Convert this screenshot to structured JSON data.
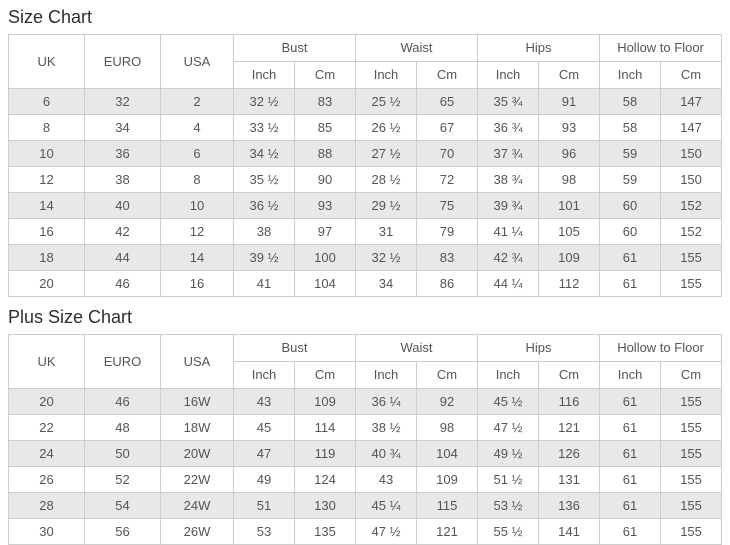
{
  "colors": {
    "stripe": "#e8e8e8",
    "border": "#cccccc",
    "text": "#555555",
    "title": "#2d2d2d",
    "background": "#ffffff"
  },
  "tables": [
    {
      "id": "size-chart",
      "title": "Size Chart",
      "plain_columns": [
        "UK",
        "EURO",
        "USA"
      ],
      "groups": [
        "Bust",
        "Waist",
        "Hips",
        "Hollow to Floor"
      ],
      "sub_headers": [
        "Inch",
        "Cm"
      ],
      "rows": [
        [
          "6",
          "32",
          "2",
          "32 ½",
          "83",
          "25 ½",
          "65",
          "35 ¾",
          "91",
          "58",
          "147"
        ],
        [
          "8",
          "34",
          "4",
          "33 ½",
          "85",
          "26 ½",
          "67",
          "36 ¾",
          "93",
          "58",
          "147"
        ],
        [
          "10",
          "36",
          "6",
          "34 ½",
          "88",
          "27 ½",
          "70",
          "37 ¾",
          "96",
          "59",
          "150"
        ],
        [
          "12",
          "38",
          "8",
          "35 ½",
          "90",
          "28 ½",
          "72",
          "38 ¾",
          "98",
          "59",
          "150"
        ],
        [
          "14",
          "40",
          "10",
          "36 ½",
          "93",
          "29 ½",
          "75",
          "39 ¾",
          "101",
          "60",
          "152"
        ],
        [
          "16",
          "42",
          "12",
          "38",
          "97",
          "31",
          "79",
          "41 ¼",
          "105",
          "60",
          "152"
        ],
        [
          "18",
          "44",
          "14",
          "39 ½",
          "100",
          "32 ½",
          "83",
          "42 ¾",
          "109",
          "61",
          "155"
        ],
        [
          "20",
          "46",
          "16",
          "41",
          "104",
          "34",
          "86",
          "44 ¼",
          "112",
          "61",
          "155"
        ]
      ]
    },
    {
      "id": "plus-size-chart",
      "title": "Plus Size Chart",
      "plain_columns": [
        "UK",
        "EURO",
        "USA"
      ],
      "groups": [
        "Bust",
        "Waist",
        "Hips",
        "Hollow to Floor"
      ],
      "sub_headers": [
        "Inch",
        "Cm"
      ],
      "rows": [
        [
          "20",
          "46",
          "16W",
          "43",
          "109",
          "36 ¼",
          "92",
          "45 ½",
          "116",
          "61",
          "155"
        ],
        [
          "22",
          "48",
          "18W",
          "45",
          "114",
          "38 ½",
          "98",
          "47 ½",
          "121",
          "61",
          "155"
        ],
        [
          "24",
          "50",
          "20W",
          "47",
          "119",
          "40 ¾",
          "104",
          "49 ½",
          "126",
          "61",
          "155"
        ],
        [
          "26",
          "52",
          "22W",
          "49",
          "124",
          "43",
          "109",
          "51 ½",
          "131",
          "61",
          "155"
        ],
        [
          "28",
          "54",
          "24W",
          "51",
          "130",
          "45 ¼",
          "115",
          "53 ½",
          "136",
          "61",
          "155"
        ],
        [
          "30",
          "56",
          "26W",
          "53",
          "135",
          "47 ½",
          "121",
          "55 ½",
          "141",
          "61",
          "155"
        ]
      ]
    }
  ]
}
